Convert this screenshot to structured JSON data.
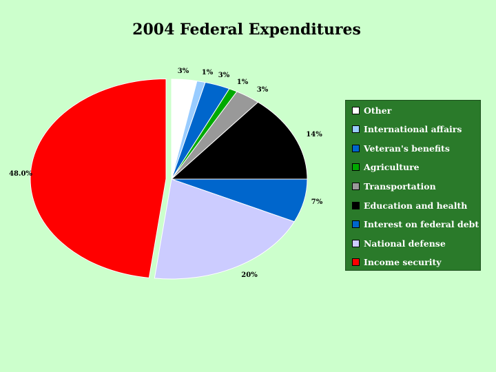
{
  "chart_data": {
    "type": "pie",
    "title": "2004 Federal Expenditures",
    "slices": [
      {
        "name": "Other",
        "label": "3%",
        "value": 3,
        "color": "#ffffff"
      },
      {
        "name": "International affairs",
        "label": "1%",
        "value": 1,
        "color": "#99ccff"
      },
      {
        "name": "Veteran's benefits",
        "label": "3%",
        "value": 3,
        "color": "#0066cc"
      },
      {
        "name": "Agriculture",
        "label": "1%",
        "value": 1,
        "color": "#00aa00"
      },
      {
        "name": "Transportation",
        "label": "3%",
        "value": 3,
        "color": "#999999"
      },
      {
        "name": "Education and health",
        "label": "14%",
        "value": 14,
        "color": "#000000"
      },
      {
        "name": "Interest on federal debt",
        "label": "7%",
        "value": 7,
        "color": "#0066cc"
      },
      {
        "name": "National defense",
        "label": "20%",
        "value": 20,
        "color": "#ccccff"
      },
      {
        "name": "Income security",
        "label": "48.0%",
        "value": 48,
        "color": "#ff0000"
      }
    ],
    "legend_position": "right"
  },
  "legend": {
    "items": [
      {
        "label": "Other",
        "color": "#ffffff"
      },
      {
        "label": "International affairs",
        "color": "#99ccff"
      },
      {
        "label": "Veteran's benefits",
        "color": "#0066cc"
      },
      {
        "label": "Agriculture",
        "color": "#00aa00"
      },
      {
        "label": "Transportation",
        "color": "#999999"
      },
      {
        "label": "Education and health",
        "color": "#000000"
      },
      {
        "label": "Interest on federal debt",
        "color": "#0066cc"
      },
      {
        "label": "National defense",
        "color": "#ccccff"
      },
      {
        "label": "Income security",
        "color": "#ff0000"
      }
    ]
  }
}
